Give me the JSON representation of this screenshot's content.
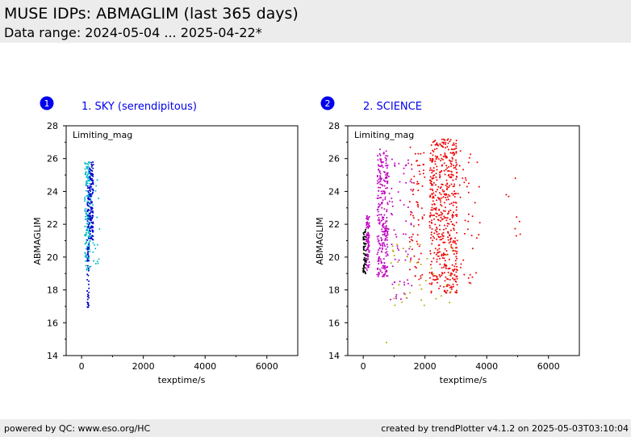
{
  "header": {
    "title": "MUSE IDPs: ABMAGLIM (last 365 days)",
    "subtitle": "Data range: 2024-05-04 ... 2025-04-22*"
  },
  "footer": {
    "left": "powered by QC: www.eso.org/HC",
    "right": "created by trendPlotter v4.1.2 on 2025-05-03T03:10:04"
  },
  "colors": {
    "badge": "#0000ee",
    "panel_title": "#0000ee",
    "header_bg": "#ececec",
    "cyan": "#00b8c8",
    "blue": "#0000cc",
    "magenta": "#c000c0",
    "red": "#ee0000",
    "olive": "#b8a800",
    "black": "#000000"
  },
  "chart_data": [
    {
      "type": "scatter",
      "badge": "1",
      "title": "1. SKY (serendipitous)",
      "annotation": "Limiting_mag",
      "xlabel": "texptime/s",
      "ylabel": "ABMAGLIM",
      "xlim": [
        -500,
        7000
      ],
      "ylim": [
        14,
        28
      ],
      "xticks": [
        0,
        2000,
        4000,
        6000
      ],
      "yticks": [
        14,
        16,
        18,
        20,
        22,
        24,
        26,
        28
      ],
      "grid": false,
      "clusters": [
        {
          "color": "cyan",
          "x": [
            100,
            300
          ],
          "y": [
            19.2,
            25.8
          ],
          "n": 170
        },
        {
          "color": "cyan",
          "x": [
            350,
            600
          ],
          "y": [
            19.3,
            24.8
          ],
          "n": 18
        },
        {
          "color": "blue",
          "x": [
            180,
            240
          ],
          "y": [
            16.9,
            24.5
          ],
          "n": 70
        },
        {
          "color": "blue",
          "x": [
            250,
            380
          ],
          "y": [
            21.0,
            25.8
          ],
          "n": 130
        }
      ]
    },
    {
      "type": "scatter",
      "badge": "2",
      "title": "2. SCIENCE",
      "annotation": "Limiting_mag",
      "xlabel": "texptime/s",
      "ylabel": "ABMAGLIM",
      "xlim": [
        -500,
        7000
      ],
      "ylim": [
        14,
        28
      ],
      "xticks": [
        0,
        2000,
        4000,
        6000
      ],
      "yticks": [
        14,
        16,
        18,
        20,
        22,
        24,
        26,
        28
      ],
      "grid": false,
      "clusters": [
        {
          "color": "black",
          "x": [
            0,
            100
          ],
          "y": [
            19.0,
            21.8
          ],
          "n": 60
        },
        {
          "color": "magenta",
          "x": [
            100,
            200
          ],
          "y": [
            19.2,
            22.6
          ],
          "n": 80
        },
        {
          "color": "magenta",
          "x": [
            450,
            800
          ],
          "y": [
            18.8,
            26.6
          ],
          "n": 260
        },
        {
          "color": "magenta",
          "x": [
            800,
            1600
          ],
          "y": [
            17.4,
            26.0
          ],
          "n": 70
        },
        {
          "color": "red",
          "x": [
            1500,
            2000
          ],
          "y": [
            18.5,
            26.8
          ],
          "n": 70
        },
        {
          "color": "red",
          "x": [
            2150,
            3050
          ],
          "y": [
            17.8,
            27.2
          ],
          "n": 520
        },
        {
          "color": "red",
          "x": [
            3000,
            3800
          ],
          "y": [
            18.3,
            26.5
          ],
          "n": 40
        },
        {
          "color": "red",
          "x": [
            4400,
            5100
          ],
          "y": [
            19.4,
            25.2
          ],
          "n": 8
        },
        {
          "color": "olive",
          "x": [
            900,
            3000
          ],
          "y": [
            17.0,
            21.0
          ],
          "n": 40
        },
        {
          "color": "olive",
          "x": [
            750,
            800
          ],
          "y": [
            14.8,
            14.8
          ],
          "n": 1
        }
      ]
    }
  ]
}
